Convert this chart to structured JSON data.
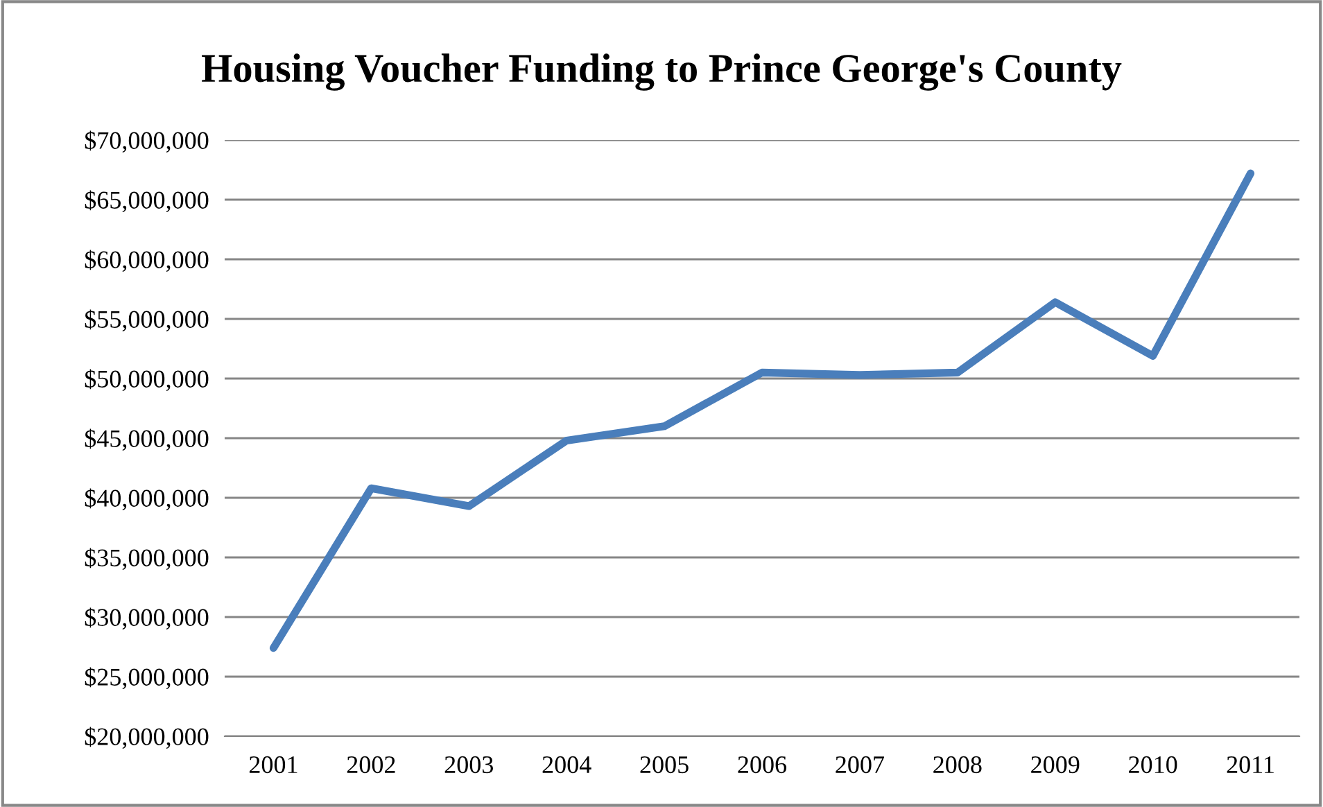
{
  "chart_data": {
    "type": "line",
    "title": "Housing Voucher Funding to Prince George's County",
    "categories": [
      "2001",
      "2002",
      "2003",
      "2004",
      "2005",
      "2006",
      "2007",
      "2008",
      "2009",
      "2010",
      "2011"
    ],
    "series": [
      {
        "color": "#4a7ebb",
        "values": [
          27400000,
          40800000,
          39300000,
          44800000,
          46000000,
          50500000,
          50300000,
          50500000,
          56400000,
          51900000,
          67200000
        ]
      }
    ],
    "ylim": [
      20000000,
      70000000
    ],
    "yticks": [
      {
        "value": 20000000,
        "label": "$20,000,000"
      },
      {
        "value": 25000000,
        "label": "$25,000,000"
      },
      {
        "value": 30000000,
        "label": "$30,000,000"
      },
      {
        "value": 35000000,
        "label": "$35,000,000"
      },
      {
        "value": 40000000,
        "label": "$40,000,000"
      },
      {
        "value": 45000000,
        "label": "$45,000,000"
      },
      {
        "value": 50000000,
        "label": "$50,000,000"
      },
      {
        "value": 55000000,
        "label": "$55,000,000"
      },
      {
        "value": 60000000,
        "label": "$60,000,000"
      },
      {
        "value": 65000000,
        "label": "$65,000,000"
      },
      {
        "value": 70000000,
        "label": "$70,000,000"
      }
    ],
    "grid": "y",
    "legend": false,
    "marker": "none",
    "line_style": "solid"
  }
}
